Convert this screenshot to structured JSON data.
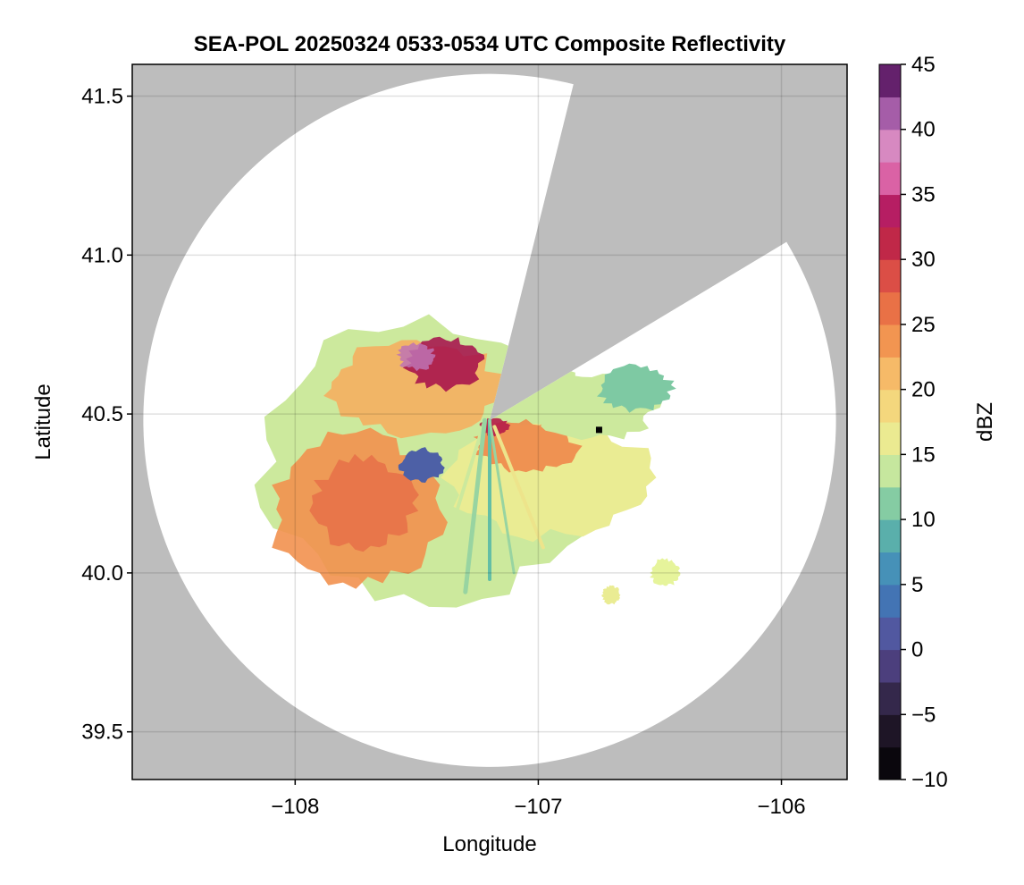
{
  "chart_data": {
    "type": "heatmap",
    "title": "SEA-POL 20250324 0533-0534 UTC Composite Reflectivity",
    "xlabel": "Longitude",
    "ylabel": "Latitude",
    "xlim": [
      -108.67,
      -105.73
    ],
    "ylim": [
      39.35,
      41.6
    ],
    "xticks": [
      -108,
      -107,
      -106
    ],
    "xtick_labels": [
      "−108",
      "−107",
      "−106"
    ],
    "yticks": [
      39.5,
      40.0,
      40.5,
      41.0,
      41.5
    ],
    "ytick_labels": [
      "39.5",
      "40.0",
      "40.5",
      "41.0",
      "41.5"
    ],
    "grid": true,
    "background_color": "#bdbdbd",
    "coverage": {
      "radar_lon": -107.2,
      "radar_lat": 40.48,
      "range_deg_lat": 1.09,
      "blocked_sectors_azimuth_deg": [
        [
          14,
          59
        ]
      ]
    },
    "colorbar": {
      "label": "dBZ",
      "min": -10,
      "max": 45,
      "step": 2.5,
      "ticks": [
        -10,
        -5,
        0,
        5,
        10,
        15,
        20,
        25,
        30,
        35,
        40,
        45
      ],
      "tick_labels": [
        "−10",
        "−5",
        "0",
        "5",
        "10",
        "15",
        "20",
        "25",
        "30",
        "35",
        "40",
        "45"
      ],
      "colormap": "spectral_r"
    },
    "echo_regions": [
      {
        "lon": -107.05,
        "lat": 40.58,
        "dbz": 15
      },
      {
        "lon": -107.55,
        "lat": 40.6,
        "dbz": 30
      },
      {
        "lon": -107.55,
        "lat": 40.35,
        "dbz": 20
      },
      {
        "lon": -107.8,
        "lat": 40.2,
        "dbz": 25
      },
      {
        "lon": -106.9,
        "lat": 40.35,
        "dbz": 20
      },
      {
        "lon": -107.5,
        "lat": 40.33,
        "dbz": 2
      },
      {
        "lon": -106.48,
        "lat": 40.0,
        "dbz": 15
      },
      {
        "lon": -106.7,
        "lat": 39.93,
        "dbz": 15
      },
      {
        "lon": -106.7,
        "lat": 40.55,
        "dbz": 12
      }
    ],
    "site_marker": {
      "lon": -106.75,
      "lat": 40.45
    }
  }
}
